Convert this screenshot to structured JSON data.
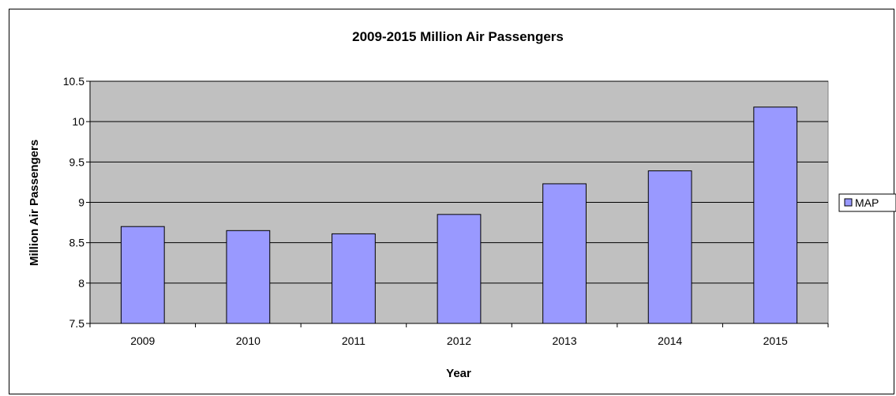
{
  "chart_data": {
    "type": "bar",
    "title": "2009-2015 Million Air Passengers",
    "xlabel": "Year",
    "ylabel": "Million Air Passengers",
    "categories": [
      "2009",
      "2010",
      "2011",
      "2012",
      "2013",
      "2014",
      "2015"
    ],
    "series": [
      {
        "name": "MAP",
        "values": [
          8.7,
          8.65,
          8.61,
          8.85,
          9.23,
          9.39,
          10.18
        ]
      }
    ],
    "ylim": [
      7.5,
      10.5
    ],
    "yticks": [
      "7.5",
      "8",
      "8.5",
      "9",
      "9.5",
      "10",
      "10.5"
    ],
    "grid": true,
    "legend_position": "right",
    "colors": {
      "plot_background": "#c0c0c0",
      "bar_fill": "#9999ff",
      "bar_stroke": "#000000",
      "gridline": "#000000"
    }
  }
}
